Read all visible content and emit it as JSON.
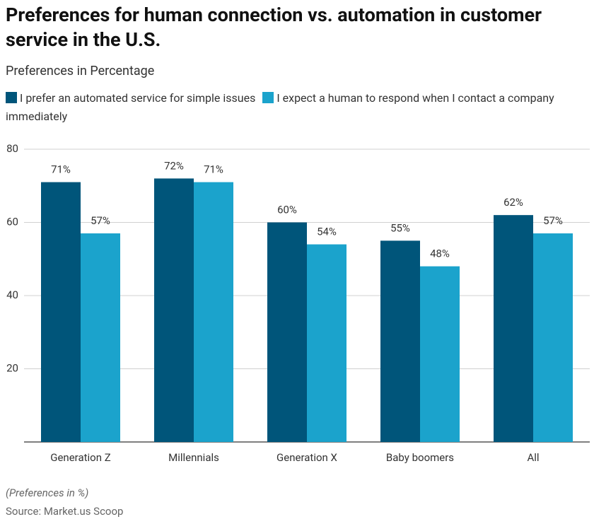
{
  "chart_data": {
    "type": "bar",
    "title": "Preferences for human connection vs. automation in customer service in the U.S.",
    "subtitle": "Preferences in Percentage",
    "categories": [
      "Generation Z",
      "Millennials",
      "Generation X",
      "Baby boomers",
      "All"
    ],
    "series": [
      {
        "name": "I prefer an automated service for simple issues",
        "color": "#00557a",
        "values": [
          71,
          72,
          60,
          55,
          62
        ],
        "value_labels": [
          "71%",
          "72%",
          "60%",
          "55%",
          "62%"
        ]
      },
      {
        "name": "I expect a human to respond when I contact a company immediately",
        "color": "#1ba3cc",
        "values": [
          57,
          71,
          54,
          48,
          57
        ],
        "value_labels": [
          "57%",
          "71%",
          "54%",
          "48%",
          "57%"
        ]
      }
    ],
    "ylim": [
      0,
      80
    ],
    "yticks": [
      20,
      40,
      60,
      80
    ],
    "grid": true,
    "note": "(Preferences in %)",
    "source": "Source: Market.us Scoop"
  }
}
